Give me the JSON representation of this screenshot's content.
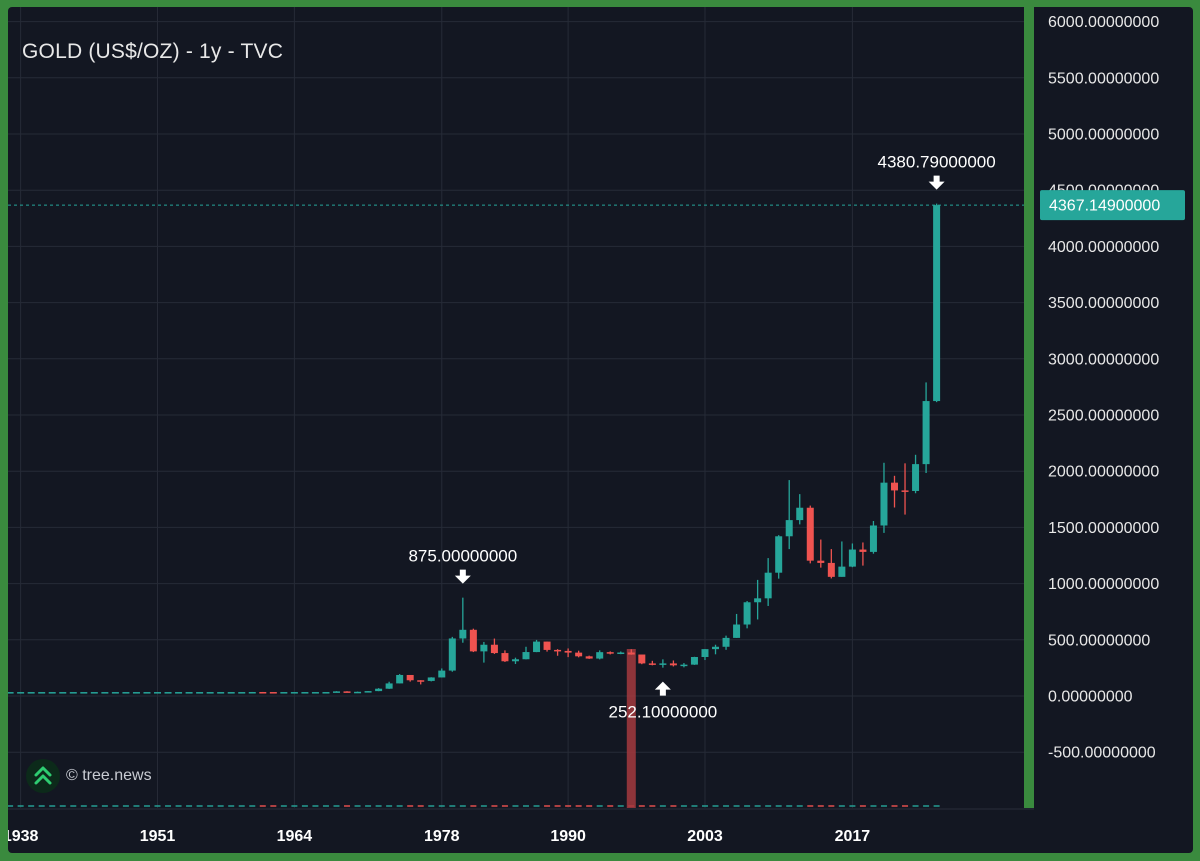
{
  "chart_data": {
    "type": "candlestick",
    "title": "GOLD (US$/OZ) - 1y - TVC",
    "watermark": "© tree.news",
    "colors": {
      "background": "#131722",
      "up": "#26a69a",
      "down": "#ef5350",
      "volume_bar": "#a53a3e",
      "grid": "#262b37",
      "text": "#e8e8e8",
      "right_strip": "#3a8a3e",
      "price_label_bg": "#26a69a"
    },
    "ylim": [
      -1000,
      6000
    ],
    "y_ticks": [
      {
        "value": 6000,
        "label": "6000.00000000"
      },
      {
        "value": 5500,
        "label": "5500.00000000"
      },
      {
        "value": 5000,
        "label": "5000.00000000"
      },
      {
        "value": 4500,
        "label": "4500.00000000"
      },
      {
        "value": 4000,
        "label": "4000.00000000"
      },
      {
        "value": 3500,
        "label": "3500.00000000"
      },
      {
        "value": 3000,
        "label": "3000.00000000"
      },
      {
        "value": 2500,
        "label": "2500.00000000"
      },
      {
        "value": 2000,
        "label": "2000.00000000"
      },
      {
        "value": 1500,
        "label": "1500.00000000"
      },
      {
        "value": 1000,
        "label": "1000.00000000"
      },
      {
        "value": 500,
        "label": "500.00000000"
      },
      {
        "value": 0,
        "label": "0.00000000"
      },
      {
        "value": -500,
        "label": "-500.00000000"
      }
    ],
    "x_ticks": [
      {
        "year": 1938,
        "label": "1938"
      },
      {
        "year": 1951,
        "label": "1951"
      },
      {
        "year": 1964,
        "label": "1964"
      },
      {
        "year": 1978,
        "label": "1978"
      },
      {
        "year": 1990,
        "label": "1990"
      },
      {
        "year": 2003,
        "label": "2003"
      },
      {
        "year": 2017,
        "label": "2017"
      }
    ],
    "xlim": [
      1936.8,
      2033.3
    ],
    "current_price": {
      "value": 4367.149,
      "label": "4367.14900000"
    },
    "annotations": [
      {
        "label": "875.00000000",
        "year": 1980,
        "value": 875,
        "position": "above"
      },
      {
        "label": "252.10000000",
        "year": 1999,
        "value": 252.1,
        "position": "below"
      },
      {
        "label": "4380.79000000",
        "year": 2025,
        "value": 4380.79,
        "position": "above"
      }
    ],
    "volume_spike": {
      "year": 1996
    },
    "candles": [
      {
        "year": 1937,
        "o": 35,
        "h": 35,
        "l": 35,
        "c": 35
      },
      {
        "year": 1938,
        "o": 35,
        "h": 35,
        "l": 35,
        "c": 35
      },
      {
        "year": 1939,
        "o": 35,
        "h": 35,
        "l": 35,
        "c": 35
      },
      {
        "year": 1940,
        "o": 35,
        "h": 35,
        "l": 35,
        "c": 35
      },
      {
        "year": 1941,
        "o": 35,
        "h": 35,
        "l": 35,
        "c": 35
      },
      {
        "year": 1942,
        "o": 35,
        "h": 35,
        "l": 35,
        "c": 35
      },
      {
        "year": 1943,
        "o": 35,
        "h": 35,
        "l": 35,
        "c": 35
      },
      {
        "year": 1944,
        "o": 35,
        "h": 35,
        "l": 35,
        "c": 35
      },
      {
        "year": 1945,
        "o": 35,
        "h": 35,
        "l": 35,
        "c": 35
      },
      {
        "year": 1946,
        "o": 35,
        "h": 35,
        "l": 35,
        "c": 35
      },
      {
        "year": 1947,
        "o": 35,
        "h": 35,
        "l": 35,
        "c": 35
      },
      {
        "year": 1948,
        "o": 35,
        "h": 35,
        "l": 35,
        "c": 35
      },
      {
        "year": 1949,
        "o": 35,
        "h": 35,
        "l": 35,
        "c": 35
      },
      {
        "year": 1950,
        "o": 35,
        "h": 35,
        "l": 35,
        "c": 35
      },
      {
        "year": 1951,
        "o": 35,
        "h": 35,
        "l": 35,
        "c": 35
      },
      {
        "year": 1952,
        "o": 35,
        "h": 35,
        "l": 35,
        "c": 35
      },
      {
        "year": 1953,
        "o": 35,
        "h": 35,
        "l": 35,
        "c": 35
      },
      {
        "year": 1954,
        "o": 35,
        "h": 35,
        "l": 35,
        "c": 35
      },
      {
        "year": 1955,
        "o": 35,
        "h": 35,
        "l": 35,
        "c": 35
      },
      {
        "year": 1956,
        "o": 35,
        "h": 35,
        "l": 35,
        "c": 35
      },
      {
        "year": 1957,
        "o": 35,
        "h": 35,
        "l": 35,
        "c": 35
      },
      {
        "year": 1958,
        "o": 35,
        "h": 35,
        "l": 35,
        "c": 35
      },
      {
        "year": 1959,
        "o": 35,
        "h": 35,
        "l": 35,
        "c": 35
      },
      {
        "year": 1960,
        "o": 35,
        "h": 36,
        "l": 35,
        "c": 35.5
      },
      {
        "year": 1961,
        "o": 35.5,
        "h": 36,
        "l": 35,
        "c": 35.2
      },
      {
        "year": 1962,
        "o": 35.2,
        "h": 35.5,
        "l": 35,
        "c": 35.1
      },
      {
        "year": 1963,
        "o": 35.1,
        "h": 35.5,
        "l": 35,
        "c": 35.1
      },
      {
        "year": 1964,
        "o": 35.1,
        "h": 35.5,
        "l": 35,
        "c": 35.1
      },
      {
        "year": 1965,
        "o": 35.1,
        "h": 35.5,
        "l": 35,
        "c": 35.1
      },
      {
        "year": 1966,
        "o": 35.1,
        "h": 35.5,
        "l": 35,
        "c": 35.1
      },
      {
        "year": 1967,
        "o": 35.1,
        "h": 35.5,
        "l": 35,
        "c": 35.2
      },
      {
        "year": 1968,
        "o": 35.2,
        "h": 43,
        "l": 35,
        "c": 41
      },
      {
        "year": 1969,
        "o": 41,
        "h": 43,
        "l": 35,
        "c": 35.2
      },
      {
        "year": 1970,
        "o": 35.2,
        "h": 39,
        "l": 34.8,
        "c": 37.4
      },
      {
        "year": 1971,
        "o": 37.4,
        "h": 44,
        "l": 37,
        "c": 43.6
      },
      {
        "year": 1972,
        "o": 43.6,
        "h": 70,
        "l": 43,
        "c": 64.9
      },
      {
        "year": 1973,
        "o": 64.9,
        "h": 127,
        "l": 63,
        "c": 112
      },
      {
        "year": 1974,
        "o": 112,
        "h": 195,
        "l": 112,
        "c": 187
      },
      {
        "year": 1975,
        "o": 187,
        "h": 187,
        "l": 128,
        "c": 140
      },
      {
        "year": 1976,
        "o": 140,
        "h": 141,
        "l": 103,
        "c": 134
      },
      {
        "year": 1977,
        "o": 134,
        "h": 167,
        "l": 130,
        "c": 165
      },
      {
        "year": 1978,
        "o": 165,
        "h": 245,
        "l": 165,
        "c": 226
      },
      {
        "year": 1979,
        "o": 226,
        "h": 526,
        "l": 216,
        "c": 512
      },
      {
        "year": 1980,
        "o": 512,
        "h": 875,
        "l": 474,
        "c": 589
      },
      {
        "year": 1981,
        "o": 589,
        "h": 599,
        "l": 391,
        "c": 397
      },
      {
        "year": 1982,
        "o": 397,
        "h": 481,
        "l": 297,
        "c": 456
      },
      {
        "year": 1983,
        "o": 456,
        "h": 511,
        "l": 374,
        "c": 382
      },
      {
        "year": 1984,
        "o": 382,
        "h": 406,
        "l": 303,
        "c": 309
      },
      {
        "year": 1985,
        "o": 309,
        "h": 341,
        "l": 285,
        "c": 327
      },
      {
        "year": 1986,
        "o": 327,
        "h": 438,
        "l": 326,
        "c": 391
      },
      {
        "year": 1987,
        "o": 391,
        "h": 499,
        "l": 390,
        "c": 484
      },
      {
        "year": 1988,
        "o": 484,
        "h": 484,
        "l": 395,
        "c": 410
      },
      {
        "year": 1989,
        "o": 410,
        "h": 417,
        "l": 358,
        "c": 401
      },
      {
        "year": 1990,
        "o": 401,
        "h": 423,
        "l": 346,
        "c": 386
      },
      {
        "year": 1991,
        "o": 386,
        "h": 403,
        "l": 344,
        "c": 353
      },
      {
        "year": 1992,
        "o": 353,
        "h": 359,
        "l": 330,
        "c": 333
      },
      {
        "year": 1993,
        "o": 333,
        "h": 406,
        "l": 326,
        "c": 390
      },
      {
        "year": 1994,
        "o": 390,
        "h": 397,
        "l": 370,
        "c": 383
      },
      {
        "year": 1995,
        "o": 383,
        "h": 396,
        "l": 372,
        "c": 387
      },
      {
        "year": 1996,
        "o": 387,
        "h": 415,
        "l": 367,
        "c": 369
      },
      {
        "year": 1997,
        "o": 369,
        "h": 367,
        "l": 283,
        "c": 290
      },
      {
        "year": 1998,
        "o": 290,
        "h": 313,
        "l": 273,
        "c": 288
      },
      {
        "year": 1999,
        "o": 288,
        "h": 326,
        "l": 252.1,
        "c": 290
      },
      {
        "year": 2000,
        "o": 290,
        "h": 316,
        "l": 263,
        "c": 273
      },
      {
        "year": 2001,
        "o": 273,
        "h": 293,
        "l": 255,
        "c": 279
      },
      {
        "year": 2002,
        "o": 279,
        "h": 349,
        "l": 277,
        "c": 347
      },
      {
        "year": 2003,
        "o": 347,
        "h": 417,
        "l": 320,
        "c": 417
      },
      {
        "year": 2004,
        "o": 417,
        "h": 456,
        "l": 371,
        "c": 438
      },
      {
        "year": 2005,
        "o": 438,
        "h": 537,
        "l": 411,
        "c": 517
      },
      {
        "year": 2006,
        "o": 517,
        "h": 730,
        "l": 517,
        "c": 636
      },
      {
        "year": 2007,
        "o": 636,
        "h": 845,
        "l": 602,
        "c": 834
      },
      {
        "year": 2008,
        "o": 834,
        "h": 1033,
        "l": 681,
        "c": 869
      },
      {
        "year": 2009,
        "o": 869,
        "h": 1227,
        "l": 801,
        "c": 1097
      },
      {
        "year": 2010,
        "o": 1097,
        "h": 1431,
        "l": 1044,
        "c": 1421
      },
      {
        "year": 2011,
        "o": 1421,
        "h": 1921,
        "l": 1307,
        "c": 1565
      },
      {
        "year": 2012,
        "o": 1565,
        "h": 1796,
        "l": 1527,
        "c": 1675
      },
      {
        "year": 2013,
        "o": 1675,
        "h": 1694,
        "l": 1180,
        "c": 1204
      },
      {
        "year": 2014,
        "o": 1204,
        "h": 1392,
        "l": 1142,
        "c": 1184
      },
      {
        "year": 2015,
        "o": 1184,
        "h": 1307,
        "l": 1046,
        "c": 1060
      },
      {
        "year": 2016,
        "o": 1060,
        "h": 1375,
        "l": 1061,
        "c": 1151
      },
      {
        "year": 2017,
        "o": 1151,
        "h": 1357,
        "l": 1146,
        "c": 1303
      },
      {
        "year": 2018,
        "o": 1303,
        "h": 1366,
        "l": 1160,
        "c": 1282
      },
      {
        "year": 2019,
        "o": 1282,
        "h": 1557,
        "l": 1266,
        "c": 1517
      },
      {
        "year": 2020,
        "o": 1517,
        "h": 2075,
        "l": 1451,
        "c": 1898
      },
      {
        "year": 2021,
        "o": 1898,
        "h": 1959,
        "l": 1677,
        "c": 1829
      },
      {
        "year": 2022,
        "o": 1829,
        "h": 2070,
        "l": 1614,
        "c": 1824
      },
      {
        "year": 2023,
        "o": 1824,
        "h": 2146,
        "l": 1804,
        "c": 2063
      },
      {
        "year": 2024,
        "o": 2063,
        "h": 2790,
        "l": 1984,
        "c": 2624
      },
      {
        "year": 2025,
        "o": 2624,
        "h": 4380.79,
        "l": 2614,
        "c": 4367.149
      }
    ]
  }
}
